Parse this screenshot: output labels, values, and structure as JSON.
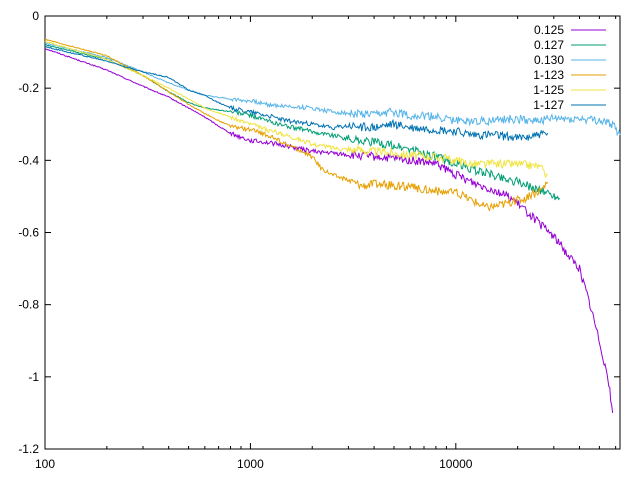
{
  "chart_data": {
    "type": "line",
    "title": "",
    "xlabel": "",
    "ylabel": "",
    "x_scale": "log",
    "xlim": [
      100,
      63000
    ],
    "ylim": [
      -1.2,
      0
    ],
    "x_ticks": [
      100,
      1000,
      10000
    ],
    "x_tick_labels": [
      "100",
      "1000",
      "10000"
    ],
    "y_ticks": [
      0,
      -0.2,
      -0.4,
      -0.6,
      -0.8,
      -1,
      -1.2
    ],
    "y_tick_labels": [
      "0",
      "-0.2",
      "-0.4",
      "-0.6",
      "-0.8",
      "-1",
      "-1.2"
    ],
    "grid": false,
    "legend_position": "top-right",
    "series": [
      {
        "name": "0.125",
        "color": "#9400d3",
        "points": [
          [
            100,
            -0.09
          ],
          [
            200,
            -0.15
          ],
          [
            300,
            -0.195
          ],
          [
            400,
            -0.225
          ],
          [
            500,
            -0.255
          ],
          [
            600,
            -0.28
          ],
          [
            700,
            -0.305
          ],
          [
            800,
            -0.325
          ],
          [
            1000,
            -0.345
          ],
          [
            1200,
            -0.35
          ],
          [
            1500,
            -0.36
          ],
          [
            2000,
            -0.375
          ],
          [
            2500,
            -0.38
          ],
          [
            3000,
            -0.385
          ],
          [
            4000,
            -0.39
          ],
          [
            5000,
            -0.395
          ],
          [
            6000,
            -0.4
          ],
          [
            7000,
            -0.405
          ],
          [
            8000,
            -0.41
          ],
          [
            10000,
            -0.44
          ],
          [
            12000,
            -0.46
          ],
          [
            15000,
            -0.48
          ],
          [
            18000,
            -0.5
          ],
          [
            20000,
            -0.52
          ],
          [
            23000,
            -0.55
          ],
          [
            26000,
            -0.58
          ],
          [
            30000,
            -0.61
          ],
          [
            35000,
            -0.66
          ],
          [
            40000,
            -0.7
          ],
          [
            45000,
            -0.8
          ],
          [
            50000,
            -0.9
          ],
          [
            55000,
            -1.0
          ],
          [
            58000,
            -1.1
          ]
        ]
      },
      {
        "name": "0.127",
        "color": "#009e73",
        "points": [
          [
            100,
            -0.08
          ],
          [
            200,
            -0.12
          ],
          [
            300,
            -0.165
          ],
          [
            400,
            -0.21
          ],
          [
            500,
            -0.24
          ],
          [
            600,
            -0.255
          ],
          [
            800,
            -0.265
          ],
          [
            1000,
            -0.275
          ],
          [
            1200,
            -0.29
          ],
          [
            1500,
            -0.305
          ],
          [
            2000,
            -0.32
          ],
          [
            2500,
            -0.33
          ],
          [
            3000,
            -0.34
          ],
          [
            4000,
            -0.35
          ],
          [
            5000,
            -0.36
          ],
          [
            6000,
            -0.37
          ],
          [
            8000,
            -0.39
          ],
          [
            10000,
            -0.41
          ],
          [
            12000,
            -0.425
          ],
          [
            15000,
            -0.44
          ],
          [
            20000,
            -0.46
          ],
          [
            25000,
            -0.48
          ],
          [
            28000,
            -0.49
          ],
          [
            32000,
            -0.505
          ]
        ]
      },
      {
        "name": "0.130",
        "color": "#56b4e9",
        "points": [
          [
            100,
            -0.075
          ],
          [
            200,
            -0.115
          ],
          [
            300,
            -0.155
          ],
          [
            400,
            -0.185
          ],
          [
            500,
            -0.205
          ],
          [
            600,
            -0.22
          ],
          [
            700,
            -0.225
          ],
          [
            800,
            -0.23
          ],
          [
            1000,
            -0.235
          ],
          [
            1200,
            -0.245
          ],
          [
            1500,
            -0.25
          ],
          [
            2000,
            -0.255
          ],
          [
            2500,
            -0.265
          ],
          [
            3000,
            -0.27
          ],
          [
            4000,
            -0.275
          ],
          [
            5000,
            -0.265
          ],
          [
            6000,
            -0.275
          ],
          [
            8000,
            -0.28
          ],
          [
            10000,
            -0.29
          ],
          [
            15000,
            -0.29
          ],
          [
            20000,
            -0.285
          ],
          [
            25000,
            -0.29
          ],
          [
            30000,
            -0.285
          ],
          [
            40000,
            -0.285
          ],
          [
            50000,
            -0.29
          ],
          [
            58000,
            -0.3
          ],
          [
            63000,
            -0.33
          ]
        ]
      },
      {
        "name": "1-123",
        "color": "#e69f00",
        "points": [
          [
            100,
            -0.065
          ],
          [
            200,
            -0.11
          ],
          [
            300,
            -0.165
          ],
          [
            400,
            -0.21
          ],
          [
            500,
            -0.245
          ],
          [
            600,
            -0.27
          ],
          [
            700,
            -0.29
          ],
          [
            800,
            -0.305
          ],
          [
            1000,
            -0.315
          ],
          [
            1200,
            -0.33
          ],
          [
            1500,
            -0.355
          ],
          [
            2000,
            -0.39
          ],
          [
            2200,
            -0.42
          ],
          [
            2500,
            -0.44
          ],
          [
            3000,
            -0.455
          ],
          [
            3500,
            -0.47
          ],
          [
            4000,
            -0.465
          ],
          [
            5000,
            -0.47
          ],
          [
            6000,
            -0.475
          ],
          [
            7000,
            -0.48
          ],
          [
            8000,
            -0.485
          ],
          [
            10000,
            -0.49
          ],
          [
            12000,
            -0.51
          ],
          [
            14000,
            -0.53
          ],
          [
            16000,
            -0.525
          ],
          [
            20000,
            -0.51
          ],
          [
            23000,
            -0.5
          ],
          [
            26000,
            -0.48
          ],
          [
            28000,
            -0.46
          ]
        ]
      },
      {
        "name": "1-125",
        "color": "#f0e442",
        "points": [
          [
            100,
            -0.07
          ],
          [
            200,
            -0.12
          ],
          [
            300,
            -0.165
          ],
          [
            400,
            -0.2
          ],
          [
            500,
            -0.23
          ],
          [
            600,
            -0.255
          ],
          [
            800,
            -0.28
          ],
          [
            1000,
            -0.3
          ],
          [
            1200,
            -0.315
          ],
          [
            1500,
            -0.33
          ],
          [
            2000,
            -0.355
          ],
          [
            2500,
            -0.365
          ],
          [
            3000,
            -0.37
          ],
          [
            4000,
            -0.375
          ],
          [
            5000,
            -0.38
          ],
          [
            6000,
            -0.385
          ],
          [
            8000,
            -0.39
          ],
          [
            10000,
            -0.4
          ],
          [
            12000,
            -0.41
          ],
          [
            15000,
            -0.41
          ],
          [
            20000,
            -0.41
          ],
          [
            25000,
            -0.415
          ],
          [
            28000,
            -0.44
          ]
        ]
      },
      {
        "name": "1-127",
        "color": "#0072b2",
        "points": [
          [
            100,
            -0.085
          ],
          [
            200,
            -0.125
          ],
          [
            300,
            -0.155
          ],
          [
            400,
            -0.17
          ],
          [
            500,
            -0.205
          ],
          [
            600,
            -0.22
          ],
          [
            700,
            -0.24
          ],
          [
            800,
            -0.255
          ],
          [
            1000,
            -0.265
          ],
          [
            1200,
            -0.275
          ],
          [
            1500,
            -0.29
          ],
          [
            2000,
            -0.3
          ],
          [
            2500,
            -0.31
          ],
          [
            3000,
            -0.305
          ],
          [
            4000,
            -0.31
          ],
          [
            5000,
            -0.3
          ],
          [
            6000,
            -0.31
          ],
          [
            8000,
            -0.315
          ],
          [
            10000,
            -0.32
          ],
          [
            12000,
            -0.33
          ],
          [
            15000,
            -0.33
          ],
          [
            18000,
            -0.335
          ],
          [
            20000,
            -0.34
          ],
          [
            24000,
            -0.33
          ],
          [
            28000,
            -0.325
          ]
        ]
      }
    ]
  }
}
